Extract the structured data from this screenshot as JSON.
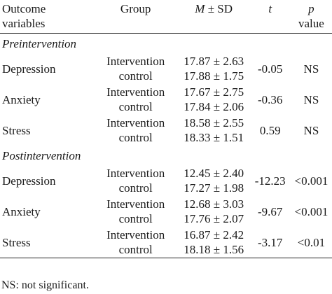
{
  "header": {
    "var_line1": "Outcome",
    "var_line2": "variables",
    "group": "Group",
    "ms_m": "M",
    "ms_rest": " ± SD",
    "t": "t",
    "p_line1": "p",
    "p_line2": "value"
  },
  "sections": [
    {
      "label": "Preintervention",
      "rows": [
        {
          "variable": "Depression",
          "group1": "Intervention",
          "group2": "control",
          "ms1": "17.87 ± 2.63",
          "ms2": "17.88 ± 1.75",
          "t": "-0.05",
          "p": "NS"
        },
        {
          "variable": "Anxiety",
          "group1": "Intervention",
          "group2": "control",
          "ms1": "17.67 ± 2.75",
          "ms2": "17.84 ± 2.06",
          "t": "-0.36",
          "p": "NS"
        },
        {
          "variable": "Stress",
          "group1": "Intervention",
          "group2": "control",
          "ms1": "18.58 ± 2.55",
          "ms2": "18.33 ± 1.51",
          "t": "0.59",
          "p": "NS"
        }
      ]
    },
    {
      "label": "Postintervention",
      "rows": [
        {
          "variable": "Depression",
          "group1": "Intervention",
          "group2": "control",
          "ms1": "12.45 ± 2.40",
          "ms2": "17.27 ± 1.98",
          "t": "-12.23",
          "p": "<0.001"
        },
        {
          "variable": "Anxiety",
          "group1": "Intervention",
          "group2": "control",
          "ms1": "12.68 ± 3.03",
          "ms2": "17.76 ± 2.07",
          "t": "-9.67",
          "p": "<0.001"
        },
        {
          "variable": "Stress",
          "group1": "Intervention",
          "group2": "control",
          "ms1": "16.87 ± 2.42",
          "ms2": "18.18 ± 1.56",
          "t": "-3.17",
          "p": "<0.01"
        }
      ]
    }
  ],
  "footnote": "NS: not significant."
}
